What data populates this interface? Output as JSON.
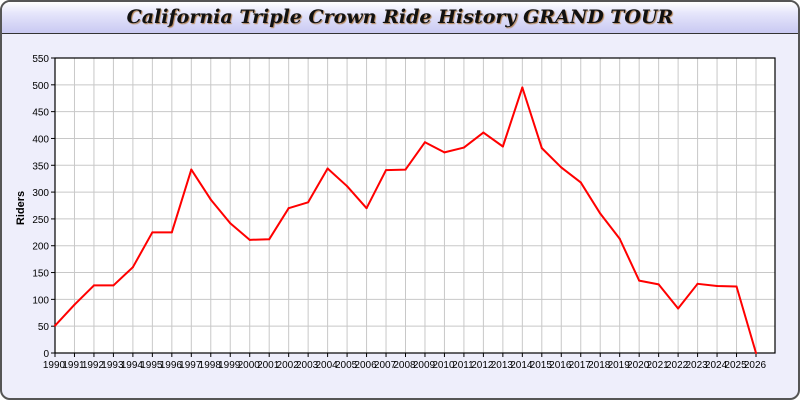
{
  "chart_data": {
    "type": "line",
    "title": "California Triple Crown Ride History GRAND TOUR",
    "xlabel": "",
    "ylabel": "Riders",
    "ylim": [
      0,
      550
    ],
    "xlim": [
      1990,
      2027
    ],
    "grid": true,
    "line_color": "#ff0000",
    "yticks": [
      0,
      50,
      100,
      150,
      200,
      250,
      300,
      350,
      400,
      450,
      500,
      550
    ],
    "x": [
      1990,
      1991,
      1992,
      1993,
      1994,
      1995,
      1996,
      1997,
      1998,
      1999,
      2000,
      2001,
      2002,
      2003,
      2004,
      2005,
      2006,
      2007,
      2008,
      2009,
      2010,
      2011,
      2012,
      2013,
      2014,
      2015,
      2016,
      2017,
      2018,
      2019,
      2020,
      2021,
      2022,
      2023,
      2024,
      2025,
      2026
    ],
    "series": [
      {
        "values": [
          51,
          90,
          126,
          126,
          160,
          225,
          225,
          342,
          286,
          242,
          211,
          212,
          270,
          281,
          344,
          311,
          270,
          341,
          342,
          393,
          374,
          383,
          411,
          385,
          495,
          382,
          346,
          318,
          260,
          213,
          135,
          128,
          83,
          129,
          125,
          124,
          0
        ]
      }
    ]
  }
}
